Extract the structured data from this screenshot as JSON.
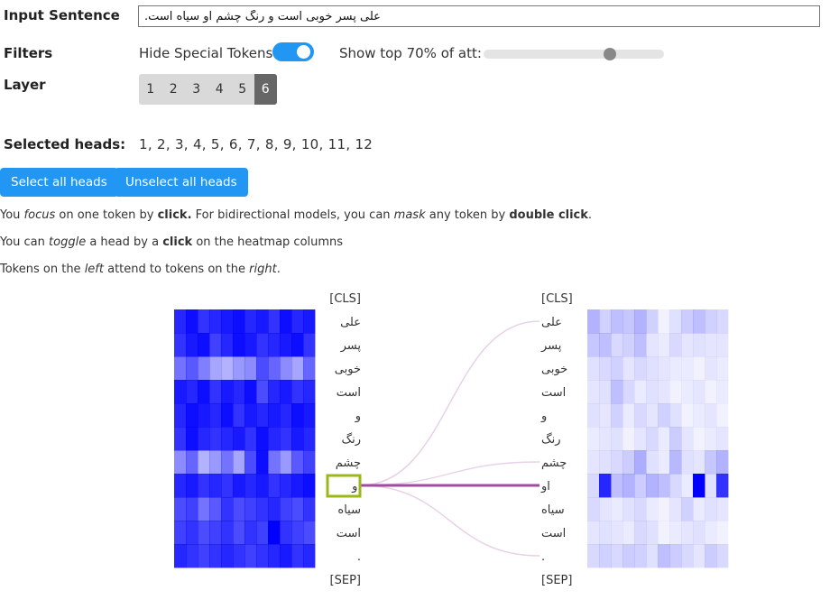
{
  "form": {
    "input_label": "Input Sentence",
    "sentence": "علی پسر خوبی است و رنگ چشم او سیاه است.",
    "filters_label": "Filters",
    "hide_special_label": "Hide Special Tokens",
    "hide_special_on": true,
    "top_att_label": "Show top 70% of att:",
    "top_att_percent": 70,
    "layer_label": "Layer",
    "layers": [
      "1",
      "2",
      "3",
      "4",
      "5",
      "6"
    ],
    "active_layer": "6",
    "selected_heads_label": "Selected heads:",
    "selected_heads": "1, 2, 3, 4, 5, 6, 7, 8, 9, 10, 11, 12",
    "select_all_label": "Select all heads",
    "unselect_all_label": "Unselect all heads"
  },
  "info": {
    "line1": [
      "You ",
      "focus",
      " on one token by ",
      "click.",
      " For bidirectional models, you can ",
      "mask",
      " any token by ",
      "double click",
      "."
    ],
    "line2": [
      "You can ",
      "toggle",
      " a head by a ",
      "click",
      " on the heatmap columns"
    ],
    "line3": [
      "Tokens on the ",
      "left",
      " attend to tokens on the ",
      "right",
      "."
    ]
  },
  "tokens": [
    "[CLS]",
    "علی",
    "پسر",
    "خوبی",
    "است",
    "و",
    "رنگ",
    "چشم",
    "او",
    "سیاه",
    "است",
    ".",
    "[SEP]"
  ],
  "focused_token_index": 8,
  "colors": {
    "accent": "#2196f3",
    "left_heatmap": "#0000ff",
    "right_heatmap": "#0000ff",
    "focus_box": "#9bb81a",
    "attention_line": "#a04ca0"
  },
  "attention": {
    "from_index": 8,
    "links": [
      {
        "to": 1,
        "weight": 0.25
      },
      {
        "to": 7,
        "weight": 0.2
      },
      {
        "to": 8,
        "weight": 1.0
      },
      {
        "to": 11,
        "weight": 0.25
      }
    ]
  },
  "left_heatmap": [
    [
      0.85,
      0.95,
      0.8,
      0.85,
      0.9,
      0.95,
      0.85,
      0.9,
      0.8,
      0.95,
      0.85,
      0.9
    ],
    [
      0.8,
      0.9,
      0.95,
      0.75,
      0.85,
      0.95,
      0.9,
      0.8,
      0.85,
      0.9,
      0.95,
      0.8
    ],
    [
      0.55,
      0.65,
      0.5,
      0.35,
      0.3,
      0.4,
      0.45,
      0.7,
      0.6,
      0.45,
      0.35,
      0.6
    ],
    [
      0.9,
      0.85,
      0.95,
      0.8,
      0.9,
      0.85,
      0.95,
      0.7,
      0.85,
      0.9,
      0.8,
      0.85
    ],
    [
      0.85,
      0.95,
      0.9,
      0.85,
      0.95,
      0.8,
      0.9,
      0.85,
      0.9,
      0.85,
      0.95,
      0.9
    ],
    [
      0.8,
      0.95,
      0.85,
      0.8,
      0.85,
      0.9,
      0.8,
      0.95,
      0.85,
      0.8,
      0.9,
      0.85
    ],
    [
      0.45,
      0.6,
      0.3,
      0.4,
      0.55,
      0.35,
      0.7,
      0.95,
      0.55,
      0.4,
      0.65,
      0.75
    ],
    [
      0.85,
      0.9,
      0.8,
      0.85,
      0.8,
      0.9,
      0.85,
      0.9,
      0.8,
      0.85,
      0.9,
      0.95
    ],
    [
      0.7,
      0.75,
      0.55,
      0.65,
      0.8,
      0.7,
      0.75,
      0.8,
      0.85,
      0.75,
      0.7,
      0.8
    ],
    [
      0.75,
      0.8,
      0.7,
      0.75,
      0.8,
      0.7,
      0.8,
      0.75,
      1.0,
      0.8,
      0.75,
      0.7
    ],
    [
      0.85,
      0.8,
      0.75,
      0.8,
      0.85,
      0.8,
      0.75,
      0.8,
      0.85,
      0.9,
      0.8,
      0.85
    ]
  ],
  "right_heatmap": [
    [
      0.3,
      0.18,
      0.25,
      0.22,
      0.3,
      0.18,
      0.05,
      0.12,
      0.2,
      0.25,
      0.18,
      0.15
    ],
    [
      0.22,
      0.25,
      0.15,
      0.18,
      0.25,
      0.1,
      0.08,
      0.15,
      0.1,
      0.12,
      0.1,
      0.1
    ],
    [
      0.12,
      0.15,
      0.18,
      0.1,
      0.15,
      0.12,
      0.1,
      0.08,
      0.08,
      0.05,
      0.1,
      0.08
    ],
    [
      0.1,
      0.12,
      0.25,
      0.15,
      0.08,
      0.12,
      0.1,
      0.05,
      0.08,
      0.1,
      0.05,
      0.08
    ],
    [
      0.12,
      0.1,
      0.18,
      0.08,
      0.15,
      0.1,
      0.18,
      0.12,
      0.05,
      0.08,
      0.1,
      0.05
    ],
    [
      0.08,
      0.1,
      0.12,
      0.05,
      0.1,
      0.15,
      0.08,
      0.2,
      0.1,
      0.05,
      0.08,
      0.1
    ],
    [
      0.1,
      0.12,
      0.15,
      0.2,
      0.32,
      0.12,
      0.08,
      0.28,
      0.12,
      0.1,
      0.22,
      0.3
    ],
    [
      0.15,
      0.85,
      0.25,
      0.3,
      0.2,
      0.3,
      0.25,
      0.15,
      0.08,
      1.0,
      0.12,
      0.8
    ],
    [
      0.15,
      0.1,
      0.08,
      0.12,
      0.15,
      0.08,
      0.05,
      0.1,
      0.18,
      0.08,
      0.12,
      0.1
    ],
    [
      0.1,
      0.12,
      0.1,
      0.08,
      0.15,
      0.12,
      0.05,
      0.08,
      0.1,
      0.12,
      0.08,
      0.05
    ],
    [
      0.15,
      0.18,
      0.15,
      0.2,
      0.18,
      0.12,
      0.25,
      0.2,
      0.15,
      0.1,
      0.2,
      0.15
    ]
  ]
}
